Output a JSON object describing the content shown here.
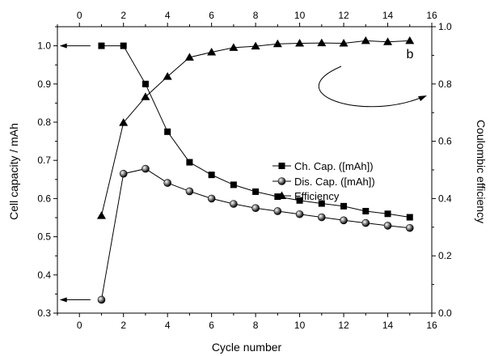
{
  "chart_data": {
    "type": "line",
    "panel_label": "b",
    "xlabel": "Cycle number",
    "ylabel_left": "Cell capacity / mAh",
    "ylabel_right": "Coulombic efficiency",
    "xlim": [
      -1,
      16
    ],
    "xticks": [
      0,
      2,
      4,
      6,
      8,
      10,
      12,
      14,
      16
    ],
    "ylim_left": [
      0.3,
      1.05
    ],
    "yticks_left": [
      0.3,
      0.4,
      0.5,
      0.6,
      0.7,
      0.8,
      0.9,
      1.0
    ],
    "ylim_right": [
      0.0,
      1.0
    ],
    "yticks_right": [
      0.0,
      0.2,
      0.4,
      0.6,
      0.8,
      1.0
    ],
    "legend_position": "center-right",
    "series": [
      {
        "name": "Ch. Cap. ([mAh])",
        "axis": "left",
        "marker": "square",
        "x": [
          1,
          2,
          3,
          4,
          5,
          6,
          7,
          8,
          9,
          10,
          11,
          12,
          13,
          14,
          15
        ],
        "y": [
          1.0,
          1.0,
          0.9,
          0.775,
          0.695,
          0.662,
          0.636,
          0.618,
          0.605,
          0.595,
          0.587,
          0.58,
          0.567,
          0.56,
          0.551
        ]
      },
      {
        "name": "Dis. Cap. ([mAh])",
        "axis": "left",
        "marker": "sphere",
        "x": [
          1,
          2,
          3,
          4,
          5,
          6,
          7,
          8,
          9,
          10,
          11,
          12,
          13,
          14,
          15
        ],
        "y": [
          0.335,
          0.665,
          0.678,
          0.641,
          0.619,
          0.6,
          0.586,
          0.575,
          0.567,
          0.559,
          0.551,
          0.543,
          0.536,
          0.529,
          0.523
        ]
      },
      {
        "name": "Efficiency",
        "axis": "right",
        "marker": "triangle",
        "x": [
          1,
          2,
          3,
          4,
          5,
          6,
          7,
          8,
          9,
          10,
          11,
          12,
          13,
          14,
          15
        ],
        "y": [
          0.34,
          0.665,
          0.755,
          0.826,
          0.893,
          0.911,
          0.927,
          0.932,
          0.94,
          0.942,
          0.943,
          0.942,
          0.951,
          0.947,
          0.951
        ]
      }
    ]
  }
}
